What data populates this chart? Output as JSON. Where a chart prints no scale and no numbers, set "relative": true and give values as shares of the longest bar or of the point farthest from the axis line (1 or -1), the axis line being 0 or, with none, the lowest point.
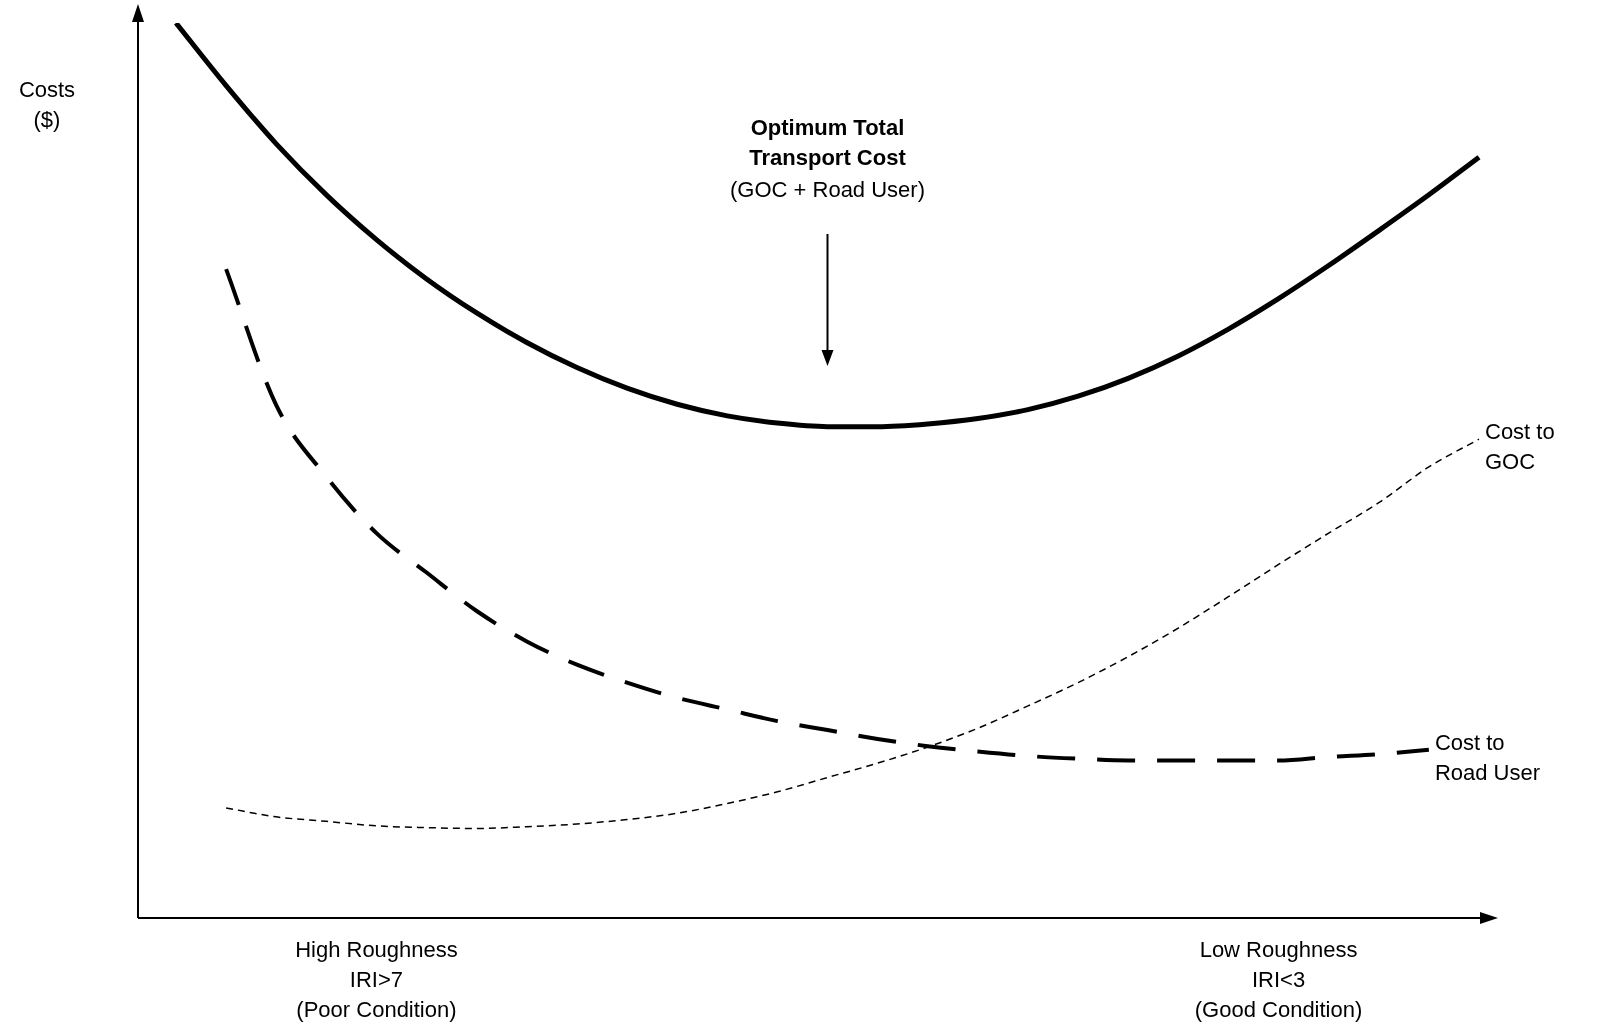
{
  "chart_data": {
    "type": "line",
    "relative": true,
    "ylabel": "Costs ($)",
    "legend": false,
    "grid": false,
    "marker": "none",
    "tick_labels": "x",
    "categories": [
      null,
      null,
      null,
      null,
      "High Roughness\nIRI>7\n(Poor Condition)",
      null,
      null,
      null,
      null,
      null,
      null,
      null,
      null,
      null,
      null,
      null,
      null,
      null,
      null,
      null,
      null,
      null,
      "Low Roughness\nIRI<3\n(Good Condition)",
      null,
      null,
      null,
      null
    ],
    "series": [
      {
        "color": "#000000",
        "line_style": "solid",
        "values": [
          1.0,
          0.93,
          0.865,
          0.808,
          0.758,
          0.714,
          0.676,
          0.643,
          0.615,
          0.592,
          0.574,
          0.561,
          0.553,
          0.549,
          0.549,
          0.552,
          0.558,
          0.568,
          0.583,
          0.603,
          0.628,
          0.658,
          0.692,
          0.729,
          0.768,
          0.808,
          0.85
        ]
      },
      {
        "name": "Cost to GOC",
        "color": "#000000",
        "line_style": "dashed",
        "values": [
          null,
          0.123,
          0.113,
          0.108,
          0.103,
          0.101,
          0.1,
          0.102,
          0.105,
          0.11,
          0.117,
          0.128,
          0.141,
          0.157,
          0.173,
          0.191,
          0.212,
          0.237,
          0.263,
          0.292,
          0.324,
          0.359,
          0.395,
          0.43,
          0.464,
          0.504,
          0.535
        ]
      },
      {
        "name": "Cost to Road User",
        "color": "#000000",
        "line_style": "dashed",
        "values": [
          null,
          0.725,
          0.573,
          0.493,
          0.43,
          0.386,
          0.343,
          0.309,
          0.283,
          0.263,
          0.246,
          0.233,
          0.22,
          0.21,
          0.2,
          0.192,
          0.186,
          0.181,
          0.178,
          0.176,
          0.176,
          0.176,
          0.176,
          0.18,
          0.183,
          0.188,
          null
        ]
      }
    ],
    "annotations": [
      "Optimum Total Transport Cost",
      "(GOC + Road User)"
    ]
  }
}
